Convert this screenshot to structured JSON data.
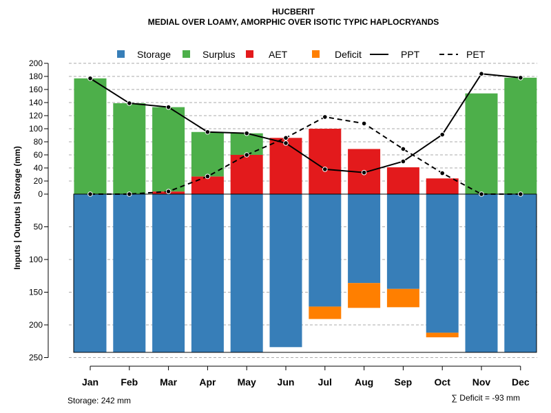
{
  "chart_data": {
    "type": "bar",
    "title": "HUCBERIT",
    "subtitle": "MEDIAL OVER LOAMY, AMORPHIC OVER ISOTIC TYPIC HAPLOCRYANDS",
    "ylabel": "Inputs | Outputs | Storage    (mm)",
    "categories": [
      "Jan",
      "Feb",
      "Mar",
      "Apr",
      "May",
      "Jun",
      "Jul",
      "Aug",
      "Sep",
      "Oct",
      "Nov",
      "Dec"
    ],
    "upper_axis": {
      "ylim": [
        0,
        200
      ],
      "ticks": [
        "0",
        "20",
        "40",
        "60",
        "80",
        "100",
        "120",
        "140",
        "160",
        "180",
        "200"
      ]
    },
    "lower_axis": {
      "ylim": [
        0,
        250
      ],
      "ticks": [
        "50",
        "100",
        "150",
        "200",
        "250"
      ]
    },
    "series": [
      {
        "name": "AET",
        "color": "#e31a1c",
        "values": [
          0,
          0,
          4,
          27,
          60,
          86,
          100,
          69,
          41,
          24,
          0,
          0
        ]
      },
      {
        "name": "Surplus",
        "color": "#4daf4a",
        "values": [
          177,
          139,
          129,
          68,
          33,
          0,
          0,
          0,
          0,
          0,
          154,
          178
        ]
      },
      {
        "name": "Storage",
        "color": "#377eb8",
        "values": [
          242,
          242,
          242,
          242,
          242,
          234,
          172,
          136,
          145,
          212,
          242,
          242
        ]
      },
      {
        "name": "Deficit",
        "color": "#ff7f00",
        "values": [
          0,
          0,
          0,
          0,
          0,
          0,
          19,
          38,
          28,
          7,
          0,
          0
        ]
      },
      {
        "name": "PPT",
        "color": "#000000",
        "style": "solid",
        "values": [
          177,
          139,
          133,
          95,
          93,
          78,
          38,
          33,
          50,
          91,
          184,
          178
        ]
      },
      {
        "name": "PET",
        "color": "#000000",
        "style": "dashed",
        "values": [
          0,
          0,
          4,
          27,
          60,
          86,
          118,
          108,
          69,
          32,
          0,
          0
        ]
      }
    ],
    "legend": {
      "position": "top",
      "items": [
        {
          "label": "Storage",
          "kind": "box",
          "color": "#377eb8"
        },
        {
          "label": "Surplus",
          "kind": "box",
          "color": "#4daf4a"
        },
        {
          "label": "AET",
          "kind": "box",
          "color": "#e31a1c"
        },
        {
          "label": "Deficit",
          "kind": "box",
          "color": "#ff7f00"
        },
        {
          "label": "PPT",
          "kind": "line",
          "dashed": false
        },
        {
          "label": "PET",
          "kind": "line",
          "dashed": true
        }
      ]
    },
    "storage_capacity": 242,
    "storage_note": "Storage: 242 mm",
    "deficit_note": "∑ Deficit = -93 mm",
    "grid": true
  }
}
